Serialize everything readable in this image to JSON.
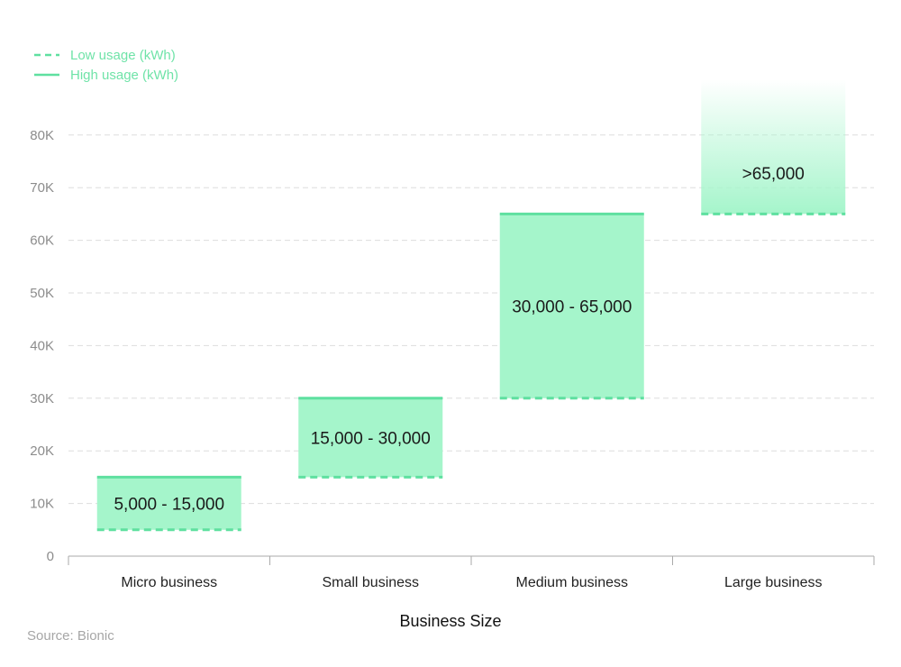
{
  "chart_data": {
    "type": "bar",
    "subtype": "floating-range",
    "categories": [
      "Micro business",
      "Small business",
      "Medium business",
      "Large business"
    ],
    "series": [
      {
        "name": "Low usage (kWh)",
        "values": [
          5000,
          15000,
          30000,
          65000
        ]
      },
      {
        "name": "High usage (kWh)",
        "values": [
          15000,
          30000,
          65000,
          null
        ]
      }
    ],
    "range_labels": [
      "5,000 - 15,000",
      "15,000 - 30,000",
      "30,000 - 65,000",
      ">65,000"
    ],
    "open_ended_top": [
      false,
      false,
      false,
      true
    ],
    "xlabel": "Business Size",
    "ylabel": "",
    "ylim": [
      0,
      85000
    ],
    "yticks": [
      0,
      10000,
      20000,
      30000,
      40000,
      50000,
      60000,
      70000,
      80000
    ],
    "ytick_labels": [
      "0",
      "10K",
      "20K",
      "30K",
      "40K",
      "50K",
      "60K",
      "70K",
      "80K"
    ],
    "grid": true,
    "legend_position": "top-left",
    "source": "Source: Bionic",
    "colors": {
      "bar_fill": "#a5f5cb",
      "line": "#5fe0a0",
      "legend_text": "#6fe3a8",
      "grid": "#dddddd",
      "axis": "#aaaaaa"
    }
  }
}
